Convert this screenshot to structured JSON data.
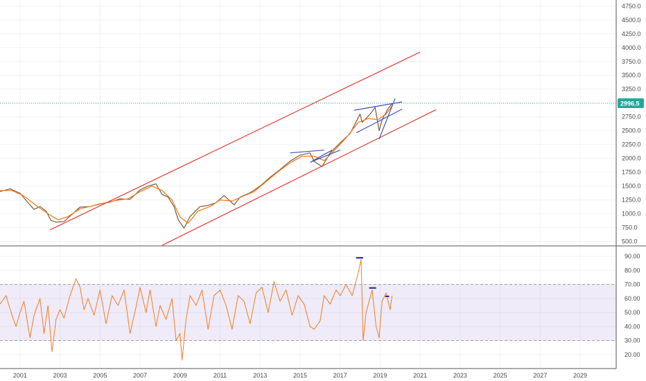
{
  "chart_data": [
    {
      "type": "line",
      "pane": "price",
      "title": "",
      "price_axis": {
        "ticks": [
          500,
          750,
          1000,
          1250,
          1500,
          1750,
          2000,
          2250,
          2500,
          2750,
          3000,
          3250,
          3500,
          3750,
          4000,
          4250,
          4500,
          4750
        ],
        "tick_labels": [
          "500.0",
          "750.0",
          "1000.0",
          "1250.0",
          "1500.0",
          "1750.0",
          "2000.0",
          "2250.0",
          "2500.0",
          "2750.0",
          "",
          "3250.0",
          "3500.0",
          "3750.0",
          "4000.0",
          "4250.0",
          "4500.0",
          "4750.0"
        ],
        "ylim": [
          420,
          4860
        ]
      },
      "last_price": {
        "value": 2996.5,
        "label": "2996.5",
        "color": "#26a69a"
      },
      "series": [
        {
          "name": "",
          "color": "#7a5c3a",
          "points": [
            [
              2000.0,
              1400
            ],
            [
              2000.5,
              1450
            ],
            [
              2001.0,
              1370
            ],
            [
              2001.4,
              1200
            ],
            [
              2001.7,
              1080
            ],
            [
              2002.0,
              1130
            ],
            [
              2002.3,
              1050
            ],
            [
              2002.55,
              880
            ],
            [
              2002.8,
              850
            ],
            [
              2003.2,
              860
            ],
            [
              2003.6,
              990
            ],
            [
              2004.0,
              1120
            ],
            [
              2004.5,
              1130
            ],
            [
              2005.0,
              1180
            ],
            [
              2005.5,
              1210
            ],
            [
              2006.0,
              1270
            ],
            [
              2006.5,
              1260
            ],
            [
              2007.0,
              1430
            ],
            [
              2007.4,
              1500
            ],
            [
              2007.8,
              1540
            ],
            [
              2008.1,
              1350
            ],
            [
              2008.4,
              1300
            ],
            [
              2008.7,
              1130
            ],
            [
              2008.9,
              900
            ],
            [
              2009.2,
              740
            ],
            [
              2009.5,
              950
            ],
            [
              2010.0,
              1130
            ],
            [
              2010.4,
              1150
            ],
            [
              2010.8,
              1200
            ],
            [
              2011.2,
              1330
            ],
            [
              2011.7,
              1160
            ],
            [
              2012.0,
              1300
            ],
            [
              2012.5,
              1380
            ],
            [
              2013.0,
              1500
            ],
            [
              2013.5,
              1660
            ],
            [
              2014.0,
              1800
            ],
            [
              2014.5,
              1950
            ],
            [
              2015.0,
              2060
            ],
            [
              2015.5,
              2100
            ],
            [
              2015.7,
              1950
            ],
            [
              2016.1,
              1850
            ],
            [
              2016.5,
              2100
            ],
            [
              2017.0,
              2280
            ],
            [
              2017.5,
              2450
            ],
            [
              2018.0,
              2800
            ],
            [
              2018.1,
              2650
            ],
            [
              2018.5,
              2800
            ],
            [
              2018.75,
              2920
            ],
            [
              2018.95,
              2500
            ],
            [
              2019.1,
              2700
            ],
            [
              2019.4,
              2900
            ],
            [
              2019.6,
              2990
            ]
          ]
        },
        {
          "name": "",
          "color": "#f57c20",
          "points": [
            [
              2000.0,
              1420
            ],
            [
              2000.6,
              1420
            ],
            [
              2001.2,
              1320
            ],
            [
              2001.8,
              1150
            ],
            [
              2002.4,
              1000
            ],
            [
              2002.9,
              890
            ],
            [
              2003.4,
              950
            ],
            [
              2004.0,
              1090
            ],
            [
              2004.6,
              1140
            ],
            [
              2005.2,
              1190
            ],
            [
              2005.8,
              1240
            ],
            [
              2006.4,
              1270
            ],
            [
              2007.0,
              1400
            ],
            [
              2007.6,
              1500
            ],
            [
              2008.1,
              1420
            ],
            [
              2008.6,
              1250
            ],
            [
              2009.0,
              940
            ],
            [
              2009.4,
              830
            ],
            [
              2009.9,
              1050
            ],
            [
              2010.5,
              1130
            ],
            [
              2011.0,
              1250
            ],
            [
              2011.6,
              1230
            ],
            [
              2012.1,
              1310
            ],
            [
              2012.7,
              1400
            ],
            [
              2013.3,
              1580
            ],
            [
              2013.9,
              1760
            ],
            [
              2014.5,
              1920
            ],
            [
              2015.1,
              2040
            ],
            [
              2015.7,
              2040
            ],
            [
              2016.2,
              1960
            ],
            [
              2016.7,
              2140
            ],
            [
              2017.3,
              2370
            ],
            [
              2017.9,
              2650
            ],
            [
              2018.4,
              2720
            ],
            [
              2018.9,
              2700
            ],
            [
              2019.3,
              2800
            ],
            [
              2019.6,
              2950
            ]
          ]
        }
      ],
      "trendlines": [
        {
          "color": "#e53935",
          "from": [
            2002.5,
            710
          ],
          "to": [
            2021.0,
            3920
          ]
        },
        {
          "color": "#e53935",
          "from": [
            2008.1,
            430
          ],
          "to": [
            2021.8,
            2880
          ]
        },
        {
          "color": "#3f51b5",
          "from": [
            2014.5,
            2100
          ],
          "to": [
            2016.2,
            2150
          ]
        },
        {
          "color": "#3f51b5",
          "from": [
            2015.5,
            1930
          ],
          "to": [
            2017.0,
            2150
          ]
        },
        {
          "color": "#3f51b5",
          "from": [
            2017.7,
            2870
          ],
          "to": [
            2020.1,
            3020
          ]
        },
        {
          "color": "#3f51b5",
          "from": [
            2017.8,
            2460
          ],
          "to": [
            2020.1,
            2890
          ]
        },
        {
          "color": "#3f51b5",
          "from": [
            2015.6,
            1950
          ],
          "to": [
            2016.6,
            2150
          ]
        },
        {
          "color": "#3f51b5",
          "from": [
            2018.95,
            2350
          ],
          "to": [
            2019.75,
            3080
          ]
        }
      ]
    },
    {
      "type": "line",
      "pane": "oscillator",
      "rsi_axis": {
        "ticks": [
          20,
          30,
          40,
          50,
          60,
          70,
          80,
          90
        ],
        "tick_labels": [
          "20.00",
          "30.00",
          "40.00",
          "50.00",
          "60.00",
          "70.00",
          "80.00",
          "90.00"
        ],
        "ylim": [
          10,
          97
        ]
      },
      "band": {
        "upper": 70,
        "lower": 30,
        "color": "#7e57c2"
      },
      "series": [
        {
          "name": "",
          "color": "#f57c20",
          "points": [
            [
              2000.0,
              56
            ],
            [
              2000.3,
              62
            ],
            [
              2000.6,
              48
            ],
            [
              2000.8,
              40
            ],
            [
              2001.0,
              50
            ],
            [
              2001.2,
              58
            ],
            [
              2001.5,
              32
            ],
            [
              2001.7,
              48
            ],
            [
              2002.0,
              60
            ],
            [
              2002.2,
              35
            ],
            [
              2002.4,
              55
            ],
            [
              2002.6,
              22
            ],
            [
              2002.8,
              45
            ],
            [
              2003.0,
              52
            ],
            [
              2003.2,
              46
            ],
            [
              2003.5,
              62
            ],
            [
              2003.8,
              74
            ],
            [
              2004.0,
              68
            ],
            [
              2004.2,
              52
            ],
            [
              2004.4,
              60
            ],
            [
              2004.7,
              48
            ],
            [
              2005.0,
              66
            ],
            [
              2005.3,
              42
            ],
            [
              2005.6,
              62
            ],
            [
              2005.9,
              55
            ],
            [
              2006.2,
              66
            ],
            [
              2006.5,
              35
            ],
            [
              2006.8,
              54
            ],
            [
              2007.0,
              68
            ],
            [
              2007.3,
              50
            ],
            [
              2007.5,
              66
            ],
            [
              2007.8,
              40
            ],
            [
              2008.0,
              55
            ],
            [
              2008.3,
              45
            ],
            [
              2008.6,
              60
            ],
            [
              2008.8,
              30
            ],
            [
              2009.0,
              35
            ],
            [
              2009.1,
              16
            ],
            [
              2009.3,
              45
            ],
            [
              2009.5,
              62
            ],
            [
              2009.8,
              55
            ],
            [
              2010.1,
              66
            ],
            [
              2010.4,
              38
            ],
            [
              2010.7,
              62
            ],
            [
              2011.0,
              66
            ],
            [
              2011.3,
              55
            ],
            [
              2011.6,
              38
            ],
            [
              2011.9,
              62
            ],
            [
              2012.2,
              58
            ],
            [
              2012.5,
              42
            ],
            [
              2012.8,
              64
            ],
            [
              2013.1,
              68
            ],
            [
              2013.4,
              50
            ],
            [
              2013.7,
              72
            ],
            [
              2014.0,
              58
            ],
            [
              2014.3,
              66
            ],
            [
              2014.6,
              48
            ],
            [
              2014.9,
              62
            ],
            [
              2015.2,
              56
            ],
            [
              2015.5,
              40
            ],
            [
              2015.7,
              38
            ],
            [
              2016.0,
              44
            ],
            [
              2016.2,
              62
            ],
            [
              2016.5,
              56
            ],
            [
              2016.8,
              66
            ],
            [
              2017.0,
              62
            ],
            [
              2017.3,
              70
            ],
            [
              2017.6,
              62
            ],
            [
              2017.9,
              78
            ],
            [
              2018.05,
              88
            ],
            [
              2018.15,
              30
            ],
            [
              2018.3,
              50
            ],
            [
              2018.6,
              66
            ],
            [
              2018.8,
              40
            ],
            [
              2018.95,
              32
            ],
            [
              2019.1,
              58
            ],
            [
              2019.3,
              64
            ],
            [
              2019.5,
              52
            ],
            [
              2019.6,
              62
            ]
          ]
        }
      ],
      "markers": [
        {
          "color": "#1a1aa8",
          "from": [
            2017.8,
            89
          ],
          "to": [
            2018.15,
            89
          ]
        },
        {
          "color": "#1a1aa8",
          "from": [
            2018.45,
            67.5
          ],
          "to": [
            2018.8,
            67.5
          ]
        },
        {
          "color": "#1a1aa8",
          "from": [
            2019.25,
            61.5
          ],
          "to": [
            2019.45,
            61.5
          ]
        }
      ]
    }
  ],
  "time_axis": {
    "ticks": [
      2001,
      2003,
      2005,
      2007,
      2009,
      2011,
      2013,
      2015,
      2017,
      2019,
      2021,
      2023,
      2025,
      2027,
      2029
    ],
    "tick_labels": [
      "2001",
      "2003",
      "2005",
      "2007",
      "2009",
      "2011",
      "2013",
      "2015",
      "2017",
      "2019",
      "2021",
      "2023",
      "2025",
      "2027",
      "2029"
    ],
    "xlim": [
      2000.0,
      2030.8
    ]
  }
}
